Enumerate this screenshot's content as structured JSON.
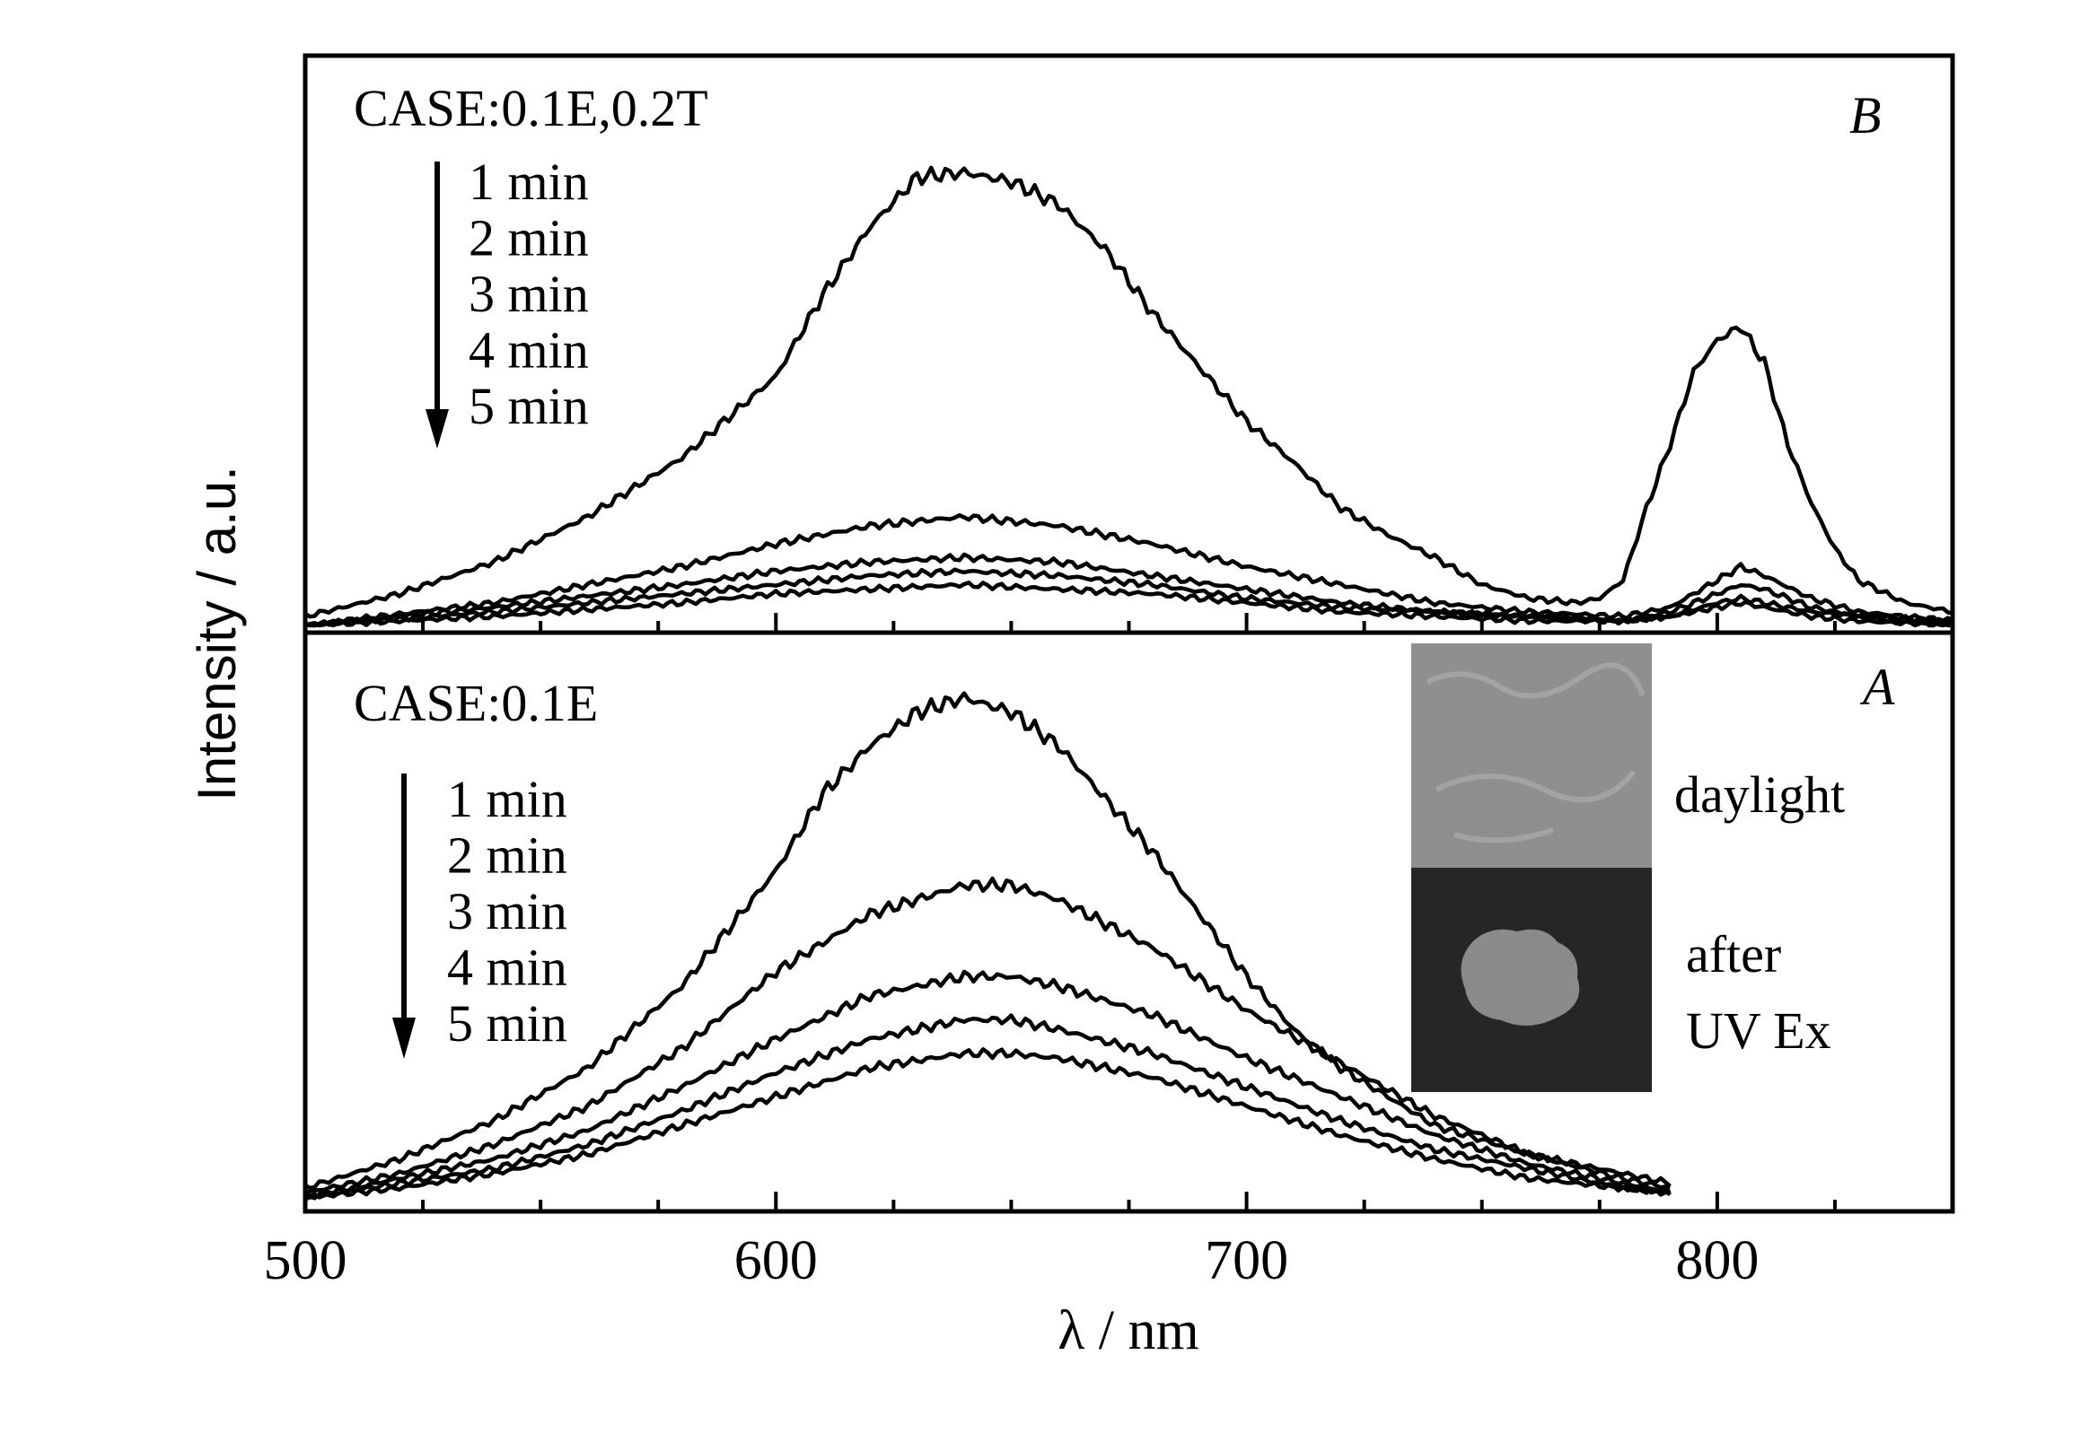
{
  "chart_data": [
    {
      "panel": "B",
      "type": "line",
      "title": "CASE:0.1E,0.2T",
      "xlabel": "λ / nm",
      "ylabel": "Intensity / a.u.",
      "xlim": [
        500,
        850
      ],
      "ylim": [
        0,
        1.05
      ],
      "arrow_labels": [
        "1 min",
        "2 min",
        "3 min",
        "4 min",
        "5 min"
      ],
      "series": [
        {
          "name": "1 min",
          "x": [
            500,
            520,
            540,
            560,
            580,
            600,
            610,
            620,
            630,
            640,
            650,
            660,
            670,
            680,
            690,
            700,
            710,
            720,
            730,
            740,
            750,
            760,
            770,
            775,
            780,
            785,
            790,
            795,
            800,
            805,
            810,
            815,
            820,
            825,
            830,
            840,
            850
          ],
          "values": [
            0.02,
            0.07,
            0.14,
            0.24,
            0.37,
            0.55,
            0.73,
            0.88,
            0.99,
            1.0,
            0.98,
            0.93,
            0.83,
            0.69,
            0.57,
            0.45,
            0.36,
            0.26,
            0.2,
            0.15,
            0.09,
            0.06,
            0.05,
            0.06,
            0.1,
            0.26,
            0.4,
            0.56,
            0.63,
            0.66,
            0.58,
            0.4,
            0.27,
            0.17,
            0.1,
            0.05,
            0.03
          ]
        },
        {
          "name": "2 min",
          "x": [
            500,
            540,
            580,
            600,
            620,
            640,
            660,
            680,
            700,
            720,
            740,
            760,
            780,
            790,
            800,
            805,
            810,
            820,
            830,
            850
          ],
          "values": [
            0.0,
            0.05,
            0.13,
            0.18,
            0.22,
            0.24,
            0.22,
            0.18,
            0.13,
            0.09,
            0.05,
            0.03,
            0.02,
            0.04,
            0.1,
            0.13,
            0.11,
            0.06,
            0.03,
            0.01
          ]
        },
        {
          "name": "3 min",
          "x": [
            500,
            540,
            580,
            600,
            620,
            640,
            660,
            680,
            700,
            720,
            740,
            760,
            780,
            790,
            800,
            805,
            810,
            820,
            830,
            850
          ],
          "values": [
            0.0,
            0.04,
            0.09,
            0.12,
            0.14,
            0.15,
            0.14,
            0.11,
            0.08,
            0.05,
            0.03,
            0.02,
            0.01,
            0.03,
            0.07,
            0.09,
            0.08,
            0.04,
            0.02,
            0.01
          ]
        },
        {
          "name": "4 min",
          "x": [
            500,
            540,
            580,
            600,
            620,
            640,
            660,
            680,
            700,
            720,
            740,
            760,
            780,
            790,
            800,
            805,
            810,
            820,
            830,
            850
          ],
          "values": [
            0.0,
            0.03,
            0.07,
            0.09,
            0.11,
            0.12,
            0.11,
            0.09,
            0.06,
            0.04,
            0.03,
            0.02,
            0.01,
            0.02,
            0.05,
            0.06,
            0.05,
            0.03,
            0.02,
            0.0
          ]
        },
        {
          "name": "5 min",
          "x": [
            500,
            540,
            580,
            600,
            620,
            640,
            660,
            680,
            700,
            720,
            740,
            760,
            780,
            790,
            800,
            805,
            810,
            820,
            830,
            850
          ],
          "values": [
            0.0,
            0.02,
            0.05,
            0.07,
            0.08,
            0.09,
            0.08,
            0.07,
            0.05,
            0.03,
            0.02,
            0.01,
            0.01,
            0.02,
            0.04,
            0.05,
            0.04,
            0.02,
            0.01,
            0.0
          ]
        }
      ]
    },
    {
      "panel": "A",
      "type": "line",
      "title": "CASE:0.1E",
      "xlabel": "λ / nm",
      "ylabel": "Intensity / a.u.",
      "xlim": [
        500,
        850
      ],
      "ylim": [
        0,
        1.12
      ],
      "xticks": [
        500,
        600,
        700,
        800
      ],
      "arrow_labels": [
        "1 min",
        "2 min",
        "3 min",
        "4 min",
        "5 min"
      ],
      "series": [
        {
          "name": "1 min",
          "x": [
            500,
            520,
            540,
            560,
            580,
            600,
            610,
            620,
            630,
            640,
            650,
            660,
            670,
            680,
            690,
            700,
            710,
            720,
            740,
            760,
            780,
            790
          ],
          "values": [
            0.03,
            0.09,
            0.17,
            0.28,
            0.45,
            0.69,
            0.85,
            0.95,
            1.02,
            1.05,
            1.02,
            0.95,
            0.84,
            0.73,
            0.6,
            0.47,
            0.36,
            0.28,
            0.16,
            0.1,
            0.06,
            0.04
          ]
        },
        {
          "name": "2 min",
          "x": [
            500,
            520,
            540,
            560,
            580,
            600,
            620,
            640,
            650,
            660,
            680,
            700,
            720,
            740,
            760,
            780,
            790
          ],
          "values": [
            0.02,
            0.06,
            0.12,
            0.2,
            0.32,
            0.48,
            0.6,
            0.66,
            0.66,
            0.63,
            0.53,
            0.4,
            0.29,
            0.18,
            0.1,
            0.05,
            0.03
          ]
        },
        {
          "name": "3 min",
          "x": [
            500,
            520,
            540,
            560,
            580,
            600,
            620,
            640,
            650,
            660,
            680,
            700,
            720,
            740,
            760,
            780,
            790
          ],
          "values": [
            0.01,
            0.05,
            0.09,
            0.15,
            0.24,
            0.34,
            0.43,
            0.47,
            0.47,
            0.45,
            0.39,
            0.3,
            0.22,
            0.14,
            0.08,
            0.04,
            0.02
          ]
        },
        {
          "name": "4 min",
          "x": [
            500,
            520,
            540,
            560,
            580,
            600,
            620,
            640,
            650,
            660,
            680,
            700,
            720,
            740,
            760,
            780,
            790
          ],
          "values": [
            0.01,
            0.04,
            0.07,
            0.12,
            0.19,
            0.27,
            0.34,
            0.38,
            0.38,
            0.36,
            0.31,
            0.24,
            0.17,
            0.11,
            0.07,
            0.03,
            0.02
          ]
        },
        {
          "name": "5 min",
          "x": [
            500,
            520,
            540,
            560,
            580,
            600,
            620,
            640,
            650,
            660,
            680,
            700,
            720,
            740,
            760,
            780,
            790
          ],
          "values": [
            0.01,
            0.03,
            0.06,
            0.1,
            0.16,
            0.22,
            0.28,
            0.31,
            0.31,
            0.3,
            0.26,
            0.2,
            0.14,
            0.09,
            0.05,
            0.03,
            0.02
          ]
        }
      ]
    }
  ],
  "inset": {
    "top_label": "daylight",
    "bottom_label_line1": "after",
    "bottom_label_line2": "UV Ex"
  },
  "panel_labels": {
    "top": "B",
    "bottom": "A"
  },
  "colors": {
    "line": "#000000",
    "daylight_photo": "#8f8f8f",
    "uv_photo": "#262626",
    "sample_glow": "#8a8a8a"
  }
}
